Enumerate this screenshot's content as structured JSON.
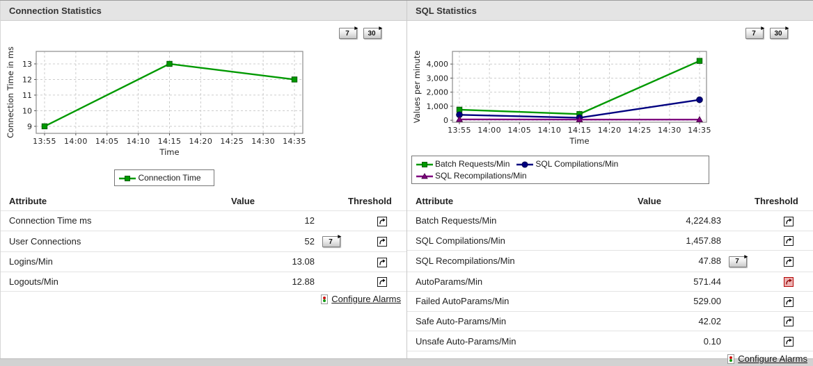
{
  "panels": [
    {
      "id": "connection-statistics",
      "title": "Connection Statistics",
      "period_buttons": [
        "7",
        "30"
      ],
      "table": {
        "headers": [
          "Attribute",
          "Value",
          "Threshold"
        ],
        "rows": [
          {
            "attribute": "Connection Time ms",
            "value": "12",
            "button": "",
            "threshold": "normal"
          },
          {
            "attribute": "User Connections",
            "value": "52",
            "button": "7",
            "threshold": "normal"
          },
          {
            "attribute": "Logins/Min",
            "value": "13.08",
            "button": "",
            "threshold": "normal"
          },
          {
            "attribute": "Logouts/Min",
            "value": "12.88",
            "button": "",
            "threshold": "normal"
          }
        ],
        "footer_link": "Configure Alarms"
      }
    },
    {
      "id": "sql-statistics",
      "title": "SQL Statistics",
      "period_buttons": [
        "7",
        "30"
      ],
      "table": {
        "headers": [
          "Attribute",
          "Value",
          "Threshold"
        ],
        "rows": [
          {
            "attribute": "Batch Requests/Min",
            "value": "4,224.83",
            "button": "",
            "threshold": "normal"
          },
          {
            "attribute": "SQL Compilations/Min",
            "value": "1,457.88",
            "button": "",
            "threshold": "normal"
          },
          {
            "attribute": "SQL Recompilations/Min",
            "value": "47.88",
            "button": "7",
            "threshold": "normal"
          },
          {
            "attribute": "AutoParams/Min",
            "value": "571.44",
            "button": "",
            "threshold": "alert"
          },
          {
            "attribute": "Failed AutoParams/Min",
            "value": "529.00",
            "button": "",
            "threshold": "normal"
          },
          {
            "attribute": "Safe Auto-Params/Min",
            "value": "42.02",
            "button": "",
            "threshold": "normal"
          },
          {
            "attribute": "Unsafe Auto-Params/Min",
            "value": "0.10",
            "button": "",
            "threshold": "normal"
          }
        ],
        "footer_link": "Configure Alarms"
      }
    }
  ],
  "chart_data": [
    {
      "panel": "Connection Statistics",
      "type": "line",
      "title": "",
      "xlabel": "Time",
      "ylabel": "Connection Time in ms",
      "x_ticks": [
        "13:55",
        "14:00",
        "14:05",
        "14:10",
        "14:15",
        "14:20",
        "14:25",
        "14:30",
        "14:35"
      ],
      "y_ticks": [
        9,
        10,
        11,
        12,
        13
      ],
      "y_tick_labels": [
        "9",
        "10",
        "11",
        "12",
        "13"
      ],
      "ylim": [
        8.55,
        13.8
      ],
      "grid": true,
      "legend_position": "bottom",
      "series": [
        {
          "name": "Connection Time",
          "color": "#009900",
          "marker": "square",
          "x": [
            "13:55",
            "14:15",
            "14:35"
          ],
          "values": [
            9,
            13,
            12
          ]
        }
      ]
    },
    {
      "panel": "SQL Statistics",
      "type": "line",
      "title": "",
      "xlabel": "Time",
      "ylabel": "Values per minute",
      "x_ticks": [
        "13:55",
        "14:00",
        "14:05",
        "14:10",
        "14:15",
        "14:20",
        "14:25",
        "14:30",
        "14:35"
      ],
      "y_ticks": [
        0,
        1000,
        2000,
        3000,
        4000
      ],
      "y_tick_labels": [
        "0",
        "1,000",
        "2,000",
        "3,000",
        "4,000"
      ],
      "ylim": [
        -140,
        4900
      ],
      "grid": true,
      "legend_position": "bottom",
      "series": [
        {
          "name": "Batch Requests/Min",
          "color": "#009900",
          "marker": "square",
          "x": [
            "13:55",
            "14:15",
            "14:35"
          ],
          "values": [
            750,
            440,
            4224.83
          ]
        },
        {
          "name": "SQL Compilations/Min",
          "color": "#000080",
          "marker": "circle",
          "x": [
            "13:55",
            "14:15",
            "14:35"
          ],
          "values": [
            390,
            180,
            1457.88
          ]
        },
        {
          "name": "SQL Recompilations/Min",
          "color": "#800080",
          "marker": "triangle",
          "x": [
            "13:55",
            "14:15",
            "14:35"
          ],
          "values": [
            60,
            50,
            47.88
          ]
        }
      ]
    }
  ],
  "icons": {
    "threshold_icon": "curved-arrow-in-box",
    "threshold_alert_icon": "curved-arrow-in-red-box",
    "configure_alarms_icon": "traffic-light",
    "period_button_arrow": "▸"
  },
  "colors": {
    "header_bg": "#e4e4e4",
    "series_green": "#009900",
    "series_navy": "#000080",
    "series_purple": "#800080",
    "alert_red": "#b30000",
    "grid_line": "#cccccc",
    "plot_border": "#8c8c8c"
  }
}
